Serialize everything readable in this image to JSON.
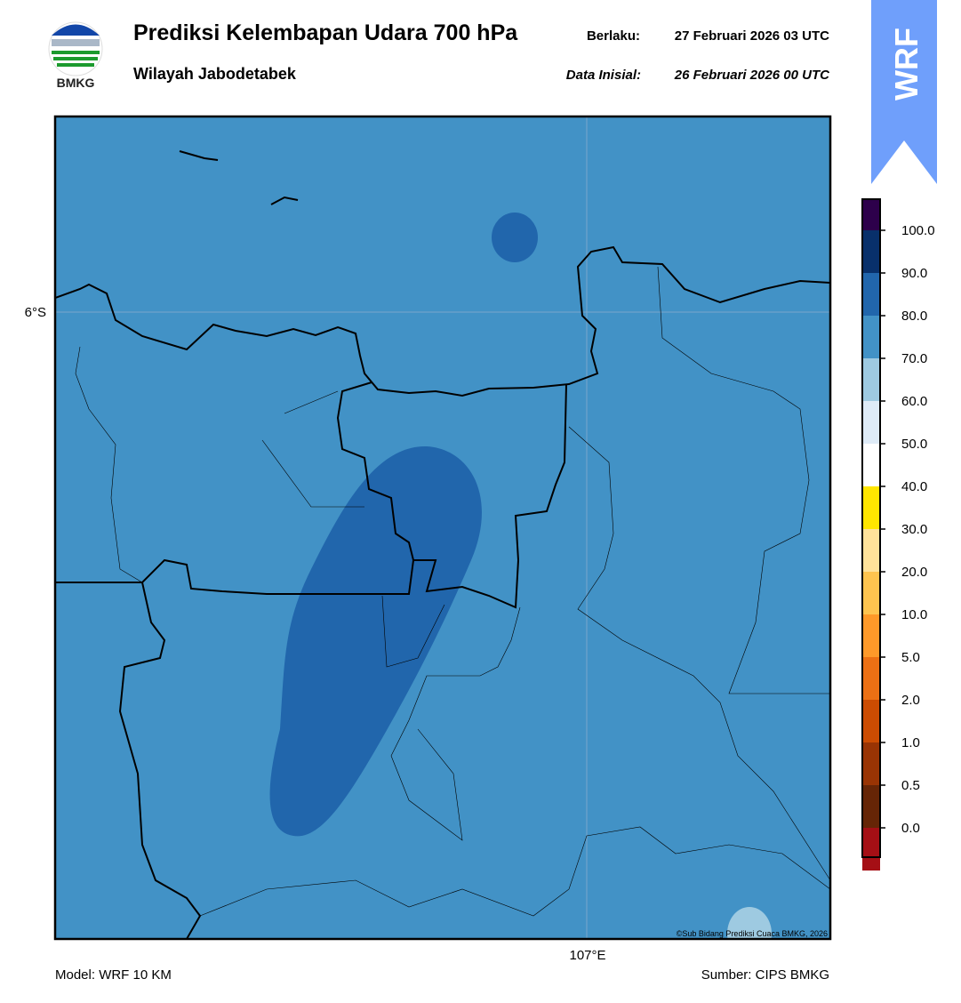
{
  "header": {
    "title": "Prediksi Kelembapan Udara 700 hPa",
    "subtitle": "Wilayah Jabodetabek",
    "valid_label": "Berlaku:",
    "valid": "27 Februari 2026 03 UTC",
    "init_label": "Data Inisial:",
    "init": "26 Februari 2026 00 UTC",
    "logo": "BMKG",
    "badge": "WRF"
  },
  "map": {
    "lat_label": "6°S",
    "lon_label": "107°E",
    "copyright": "©Sub Bidang Prediksi Cuaca BMKG, 2026",
    "fill": "#4292c6",
    "core_fill": "#2166ac",
    "patch_fill": "#9ecae1"
  },
  "colorbar": {
    "ticks": [
      "100.0",
      "90.0",
      "80.0",
      "70.0",
      "60.0",
      "50.0",
      "40.0",
      "30.0",
      "20.0",
      "10.0",
      "5.0",
      "2.0",
      "1.0",
      "0.5",
      "0.0"
    ],
    "colors": [
      "#2d004b",
      "#08306b",
      "#2166ac",
      "#4292c6",
      "#9ecae1",
      "#deebf7",
      "#ffffff",
      "#ffe600",
      "#ffe29a",
      "#fec44f",
      "#fe9929",
      "#ec7014",
      "#cc4c02",
      "#993404",
      "#662506",
      "#a50f15",
      "#e8392b"
    ]
  },
  "footer": {
    "model": "Model: WRF 10 KM",
    "source": "Sumber: CIPS BMKG"
  }
}
